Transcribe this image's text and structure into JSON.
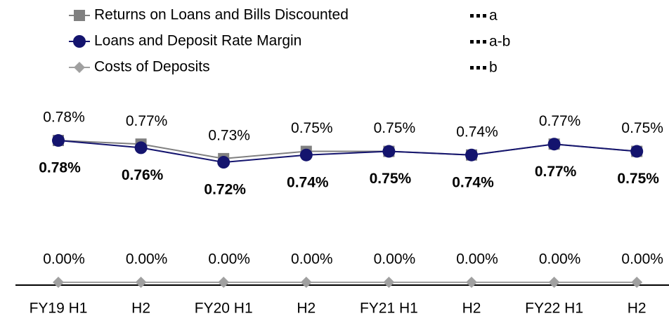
{
  "chart_data": {
    "type": "line",
    "categories": [
      "FY19 H1",
      "H2",
      "FY20 H1",
      "H2",
      "FY21 H1",
      "H2",
      "FY22 H1",
      "H2"
    ],
    "ylim": [
      0.7,
      0.8
    ],
    "y2lim": [
      0,
      0.1
    ],
    "series": [
      {
        "name": "Returns on Loans and Bills Discounted",
        "tag": "a",
        "color": "#808080",
        "marker": "square",
        "label_position": "above",
        "label_weight": "normal",
        "values": [
          0.78,
          0.77,
          0.73,
          0.75,
          0.75,
          0.74,
          0.77,
          0.75
        ],
        "value_labels": [
          "0.78%",
          "0.77%",
          "0.73%",
          "0.75%",
          "0.75%",
          "0.74%",
          "0.77%",
          "0.75%"
        ]
      },
      {
        "name": "Loans and Deposit Rate Margin",
        "tag": "a-b",
        "color": "#14146e",
        "marker": "circle",
        "label_position": "below",
        "label_weight": "bold",
        "values": [
          0.78,
          0.76,
          0.72,
          0.74,
          0.75,
          0.74,
          0.77,
          0.75
        ],
        "value_labels": [
          "0.78%",
          "0.76%",
          "0.72%",
          "0.74%",
          "0.75%",
          "0.74%",
          "0.77%",
          "0.75%"
        ]
      },
      {
        "name": "Costs of Deposits",
        "tag": "b",
        "color": "#a0a0a0",
        "marker": "diamond",
        "label_position": "above",
        "label_weight": "normal",
        "axis": "y2",
        "values": [
          0,
          0,
          0,
          0,
          0,
          0,
          0,
          0
        ],
        "value_labels": [
          "0.00%",
          "0.00%",
          "0.00%",
          "0.00%",
          "0.00%",
          "0.00%",
          "0.00%",
          "0.00%"
        ]
      }
    ]
  }
}
